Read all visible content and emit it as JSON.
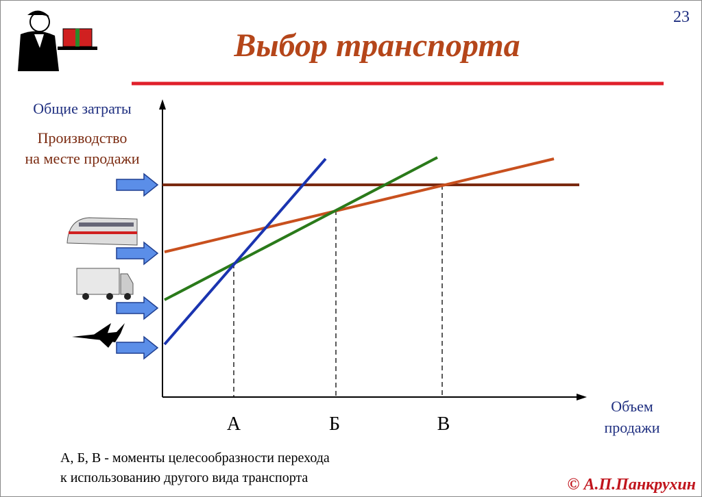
{
  "page_number": "23",
  "title": "Выбор транспорта",
  "y_axis_label": "Общие затраты",
  "local_production": [
    "Производство",
    "на месте продажи"
  ],
  "x_axis_label": [
    "Объем",
    "продажи"
  ],
  "points": [
    "А",
    "Б",
    "В"
  ],
  "caption": [
    "А, Б, В  -  моменты целесообразности перехода",
    "к использованию другого вида транспорта"
  ],
  "author": "© А.П.Панкрухин"
}
